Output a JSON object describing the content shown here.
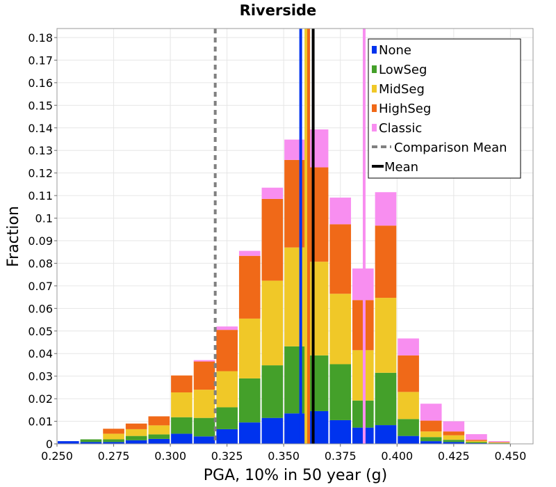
{
  "chart_data": {
    "type": "bar",
    "stacked": true,
    "title": "Riverside",
    "xlabel": "PGA, 10% in 50 year (g)",
    "ylabel": "Fraction",
    "xlim": [
      0.25,
      0.46
    ],
    "ylim": [
      0,
      0.184
    ],
    "bin_width": 0.01,
    "x_ticks": [
      "0.250",
      "0.275",
      "0.300",
      "0.325",
      "0.350",
      "0.375",
      "0.400",
      "0.425",
      "0.450"
    ],
    "y_ticks": [
      "0",
      "0.01",
      "0.02",
      "0.03",
      "0.04",
      "0.05",
      "0.06",
      "0.07",
      "0.08",
      "0.09",
      "0.1",
      "0.11",
      "0.12",
      "0.13",
      "0.14",
      "0.15",
      "0.16",
      "0.17",
      "0.18"
    ],
    "bins": [
      0.25,
      0.26,
      0.27,
      0.28,
      0.29,
      0.3,
      0.31,
      0.32,
      0.33,
      0.34,
      0.35,
      0.36,
      0.37,
      0.38,
      0.39,
      0.4,
      0.41,
      0.42,
      0.43,
      0.44
    ],
    "series": [
      {
        "name": "None",
        "color": "#0033ee",
        "values": [
          0.0012,
          0.0008,
          0.0008,
          0.0016,
          0.0022,
          0.0045,
          0.0033,
          0.0065,
          0.0095,
          0.0115,
          0.0135,
          0.0145,
          0.0105,
          0.0072,
          0.0083,
          0.0035,
          0.0012,
          0.0008,
          0.0003,
          0.0002
        ]
      },
      {
        "name": "LowSeg",
        "color": "#44a02a",
        "values": [
          0.0,
          0.0012,
          0.0012,
          0.0019,
          0.002,
          0.0073,
          0.0082,
          0.0097,
          0.0195,
          0.0233,
          0.0297,
          0.0247,
          0.0248,
          0.012,
          0.0232,
          0.0075,
          0.0018,
          0.001,
          0.0005,
          0.0002
        ]
      },
      {
        "name": "MidSeg",
        "color": "#f0c828",
        "values": [
          0.0,
          0.0,
          0.0025,
          0.003,
          0.004,
          0.011,
          0.0125,
          0.016,
          0.0265,
          0.0375,
          0.0438,
          0.0415,
          0.0312,
          0.0223,
          0.0332,
          0.012,
          0.0025,
          0.002,
          0.0005,
          0.0002
        ]
      },
      {
        "name": "HighSeg",
        "color": "#f06918",
        "values": [
          0.0,
          0.0,
          0.0022,
          0.0025,
          0.004,
          0.0075,
          0.0125,
          0.0183,
          0.0278,
          0.0362,
          0.0388,
          0.0418,
          0.0308,
          0.0222,
          0.032,
          0.0162,
          0.0048,
          0.0017,
          0.0005,
          0.0002
        ]
      },
      {
        "name": "Classic",
        "color": "#f88ef0",
        "values": [
          0.0,
          0.0,
          0.0,
          0.0,
          0.0,
          0.0,
          0.0006,
          0.0015,
          0.0022,
          0.005,
          0.009,
          0.0168,
          0.0118,
          0.014,
          0.0148,
          0.0075,
          0.0075,
          0.0045,
          0.0025,
          0.0004
        ]
      }
    ],
    "vertical_lines": [
      {
        "name": "None mean",
        "x": 0.3575,
        "color": "#0033ee",
        "style": "solid"
      },
      {
        "name": "LowSeg mean",
        "x": 0.361,
        "color": "#44a02a",
        "style": "solid"
      },
      {
        "name": "MidSeg mean",
        "x": 0.3598,
        "color": "#f0c828",
        "style": "solid"
      },
      {
        "name": "HighSeg mean",
        "x": 0.361,
        "color": "#f06918",
        "style": "solid"
      },
      {
        "name": "Classic mean",
        "x": 0.3855,
        "color": "#f88ef0",
        "style": "solid"
      },
      {
        "name": "Comparison Mean",
        "x": 0.3198,
        "color": "#808080",
        "style": "dashed"
      },
      {
        "name": "Mean",
        "x": 0.363,
        "color": "#000000",
        "style": "solid"
      }
    ],
    "legend": {
      "position": "top-right",
      "entries": [
        {
          "label": "None",
          "color": "#0033ee",
          "kind": "box"
        },
        {
          "label": "LowSeg",
          "color": "#44a02a",
          "kind": "box"
        },
        {
          "label": "MidSeg",
          "color": "#f0c828",
          "kind": "box"
        },
        {
          "label": "HighSeg",
          "color": "#f06918",
          "kind": "box"
        },
        {
          "label": "Classic",
          "color": "#f88ef0",
          "kind": "box"
        },
        {
          "label": "Comparison Mean",
          "color": "#808080",
          "kind": "dashed"
        },
        {
          "label": "Mean",
          "color": "#000000",
          "kind": "line"
        }
      ]
    },
    "grid": true
  }
}
